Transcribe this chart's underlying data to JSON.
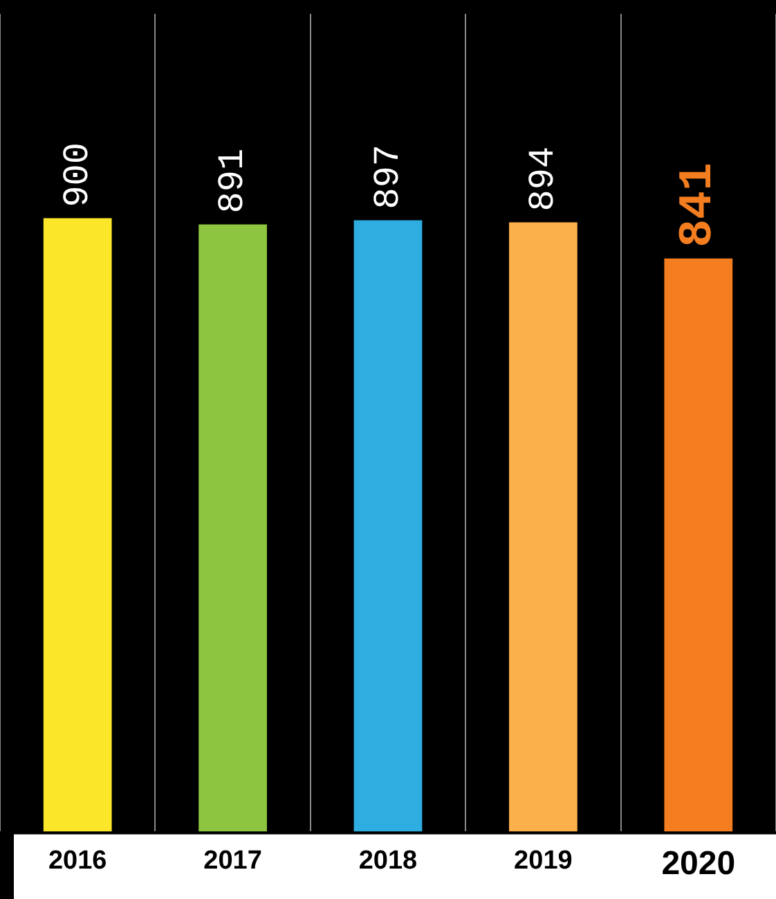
{
  "chart_data": {
    "type": "bar",
    "categories": [
      "2016",
      "2017",
      "2018",
      "2019",
      "2020"
    ],
    "values": [
      900,
      891,
      897,
      894,
      841
    ],
    "colors": [
      "#fbe62a",
      "#8dc540",
      "#2eaee0",
      "#fbb04b",
      "#f47d20"
    ],
    "data_labels": true,
    "grid": "x",
    "legend": false
  }
}
